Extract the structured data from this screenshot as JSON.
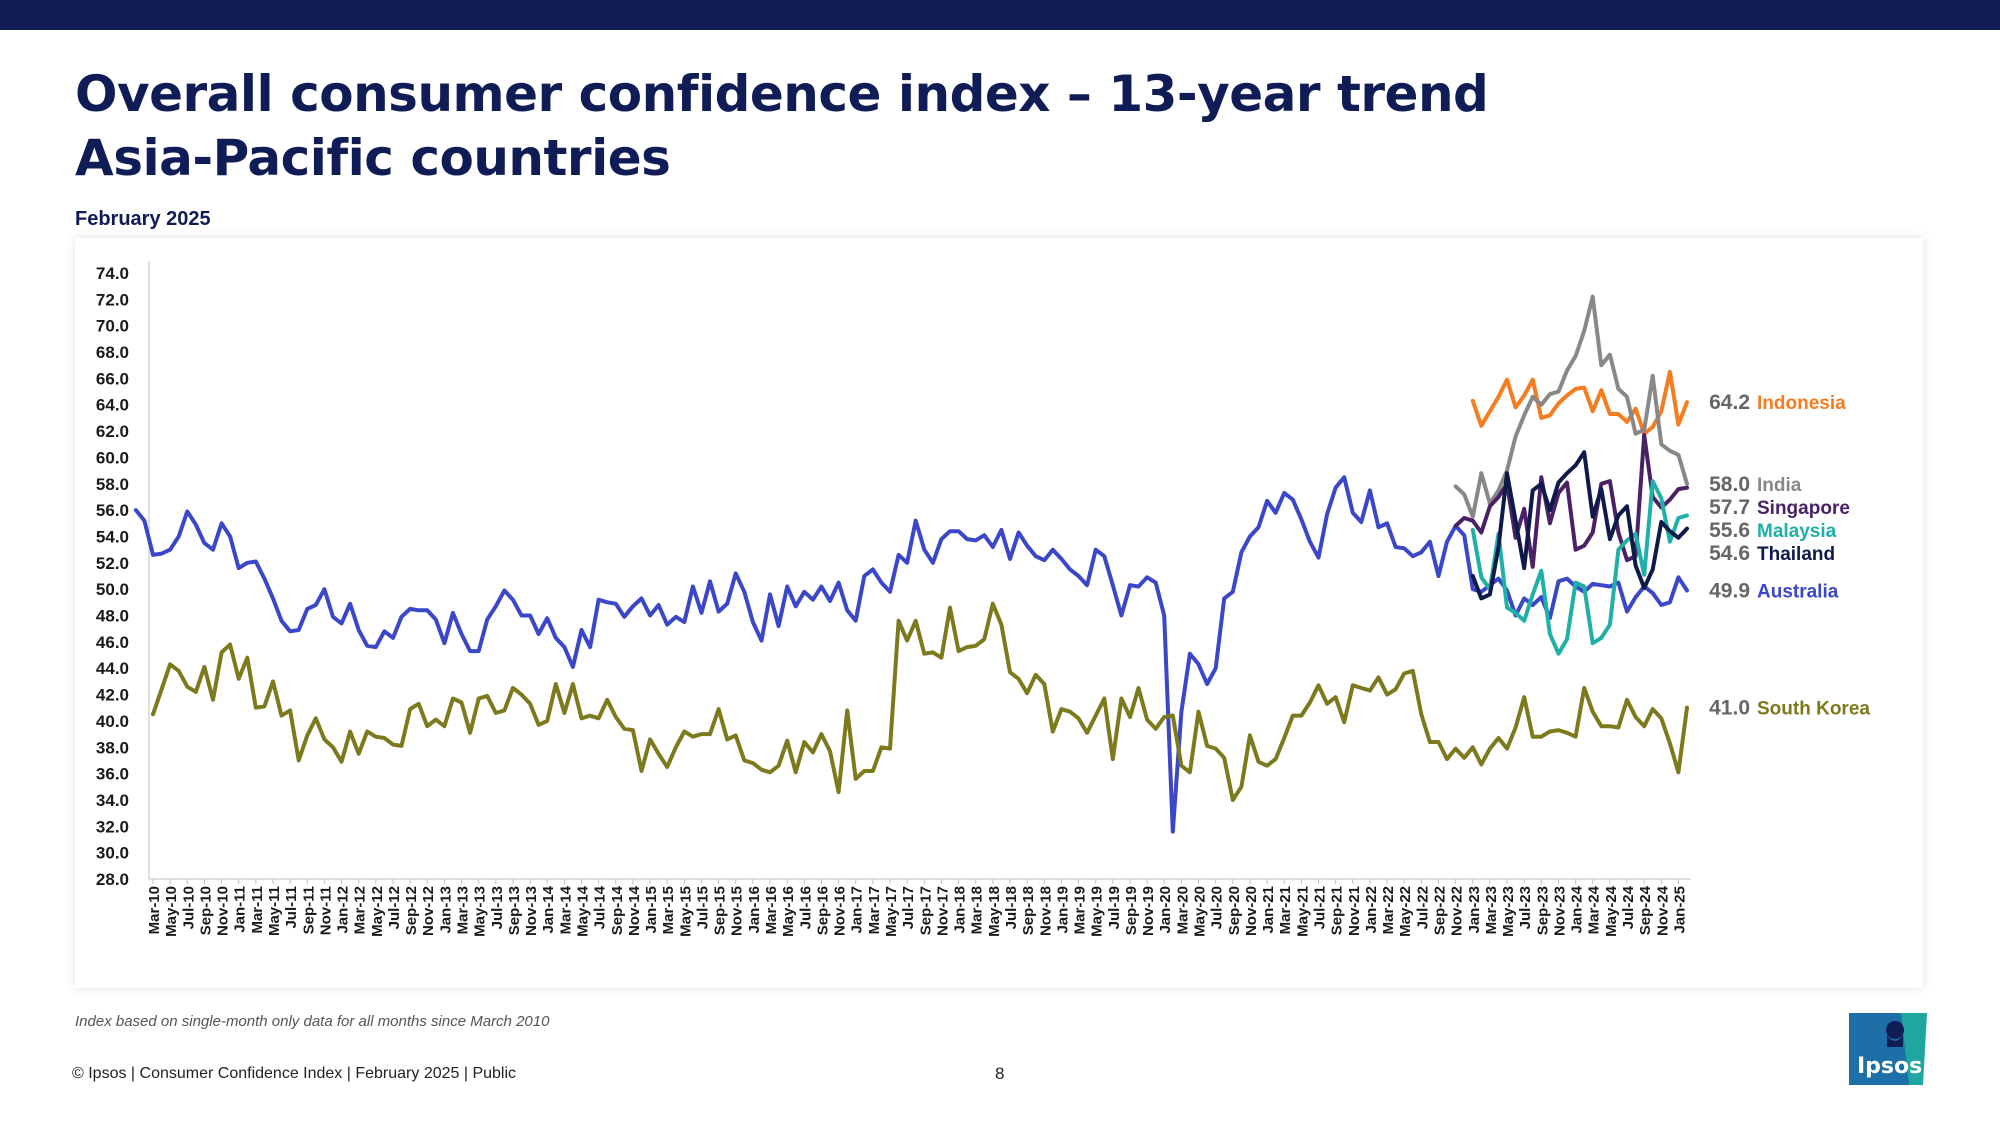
{
  "header": {
    "title_line1": "Overall consumer confidence index – 13-year trend",
    "title_line2": "Asia-Pacific countries",
    "subtitle": "February 2025"
  },
  "footnote": "Index based on single-month only data for all months since March 2010",
  "footer": {
    "copyright": "© Ipsos | Consumer Confidence Index | February 2025 | Public",
    "page": "8",
    "logo_text": "Ipsos"
  },
  "colors": {
    "navy": "#101c55",
    "Australia": "#3b47c8",
    "South Korea": "#7d7a1e",
    "Indonesia": "#f57c20",
    "India": "#888888",
    "Singapore": "#4a2166",
    "Malaysia": "#1fb0a8",
    "Thailand": "#0e1a4a",
    "logo": "#1d6fa8"
  },
  "chart_data": {
    "type": "line",
    "title": "",
    "xlabel": "",
    "ylabel": "",
    "ylim": [
      28,
      74
    ],
    "yticks": [
      "74.0",
      "72.0",
      "70.0",
      "68.0",
      "66.0",
      "64.0",
      "62.0",
      "60.0",
      "58.0",
      "56.0",
      "54.0",
      "52.0",
      "50.0",
      "48.0",
      "46.0",
      "44.0",
      "42.0",
      "40.0",
      "38.0",
      "36.0",
      "34.0",
      "32.0",
      "30.0",
      "28.0"
    ],
    "start_month": "Mar-10",
    "end_month": "Feb-25",
    "x_tick_labels": [
      "Mar-10",
      "May-10",
      "Jul-10",
      "Sep-10",
      "Nov-10",
      "Jan-11",
      "Mar-11",
      "May-11",
      "Jul-11",
      "Sep-11",
      "Nov-11",
      "Jan-12",
      "Mar-12",
      "May-12",
      "Jul-12",
      "Sep-12",
      "Nov-12",
      "Jan-13",
      "Mar-13",
      "May-13",
      "Jul-13",
      "Sep-13",
      "Nov-13",
      "Jan-14",
      "Mar-14",
      "May-14",
      "Jul-14",
      "Sep-14",
      "Nov-14",
      "Jan-15",
      "Mar-15",
      "May-15",
      "Jul-15",
      "Sep-15",
      "Nov-15",
      "Jan-16",
      "Mar-16",
      "May-16",
      "Jul-16",
      "Sep-16",
      "Nov-16",
      "Jan-17",
      "Mar-17",
      "May-17",
      "Jul-17",
      "Sep-17",
      "Nov-17",
      "Jan-18",
      "Mar-18",
      "May-18",
      "Jul-18",
      "Sep-18",
      "Nov-18",
      "Jan-19",
      "Mar-19",
      "May-19",
      "Jul-19",
      "Sep-19",
      "Nov-19",
      "Jan-20",
      "Mar-20",
      "May-20",
      "Jul-20",
      "Sep-20",
      "Nov-20",
      "Jan-21",
      "Mar-21",
      "May-21",
      "Jul-21",
      "Sep-21",
      "Nov-21",
      "Jan-22",
      "Mar-22",
      "May-22",
      "Jul-22",
      "Sep-22",
      "Nov-22",
      "Jan-23",
      "Mar-23",
      "May-23",
      "Jul-23",
      "Sep-23",
      "Nov-23",
      "Jan-24",
      "Mar-24",
      "May-24",
      "Jul-24",
      "Sep-24",
      "Nov-24",
      "Jan-25"
    ],
    "series": [
      {
        "name": "Australia",
        "last_label": "49.9",
        "values": [
          56.0,
          55.2,
          52.6,
          52.7,
          53.0,
          54.0,
          55.9,
          54.9,
          53.5,
          53.0,
          55.0,
          54.0,
          51.6,
          52.0,
          52.1,
          50.8,
          49.3,
          47.6,
          46.8,
          46.9,
          48.5,
          48.8,
          50.0,
          47.9,
          47.4,
          48.9,
          46.9,
          45.7,
          45.6,
          46.8,
          46.3,
          47.9,
          48.5,
          48.4,
          48.4,
          47.7,
          45.9,
          48.2,
          46.6,
          45.3,
          45.3,
          47.7,
          48.7,
          49.9,
          49.2,
          48.0,
          48.0,
          46.6,
          47.8,
          46.3,
          45.6,
          44.1,
          46.9,
          45.6,
          49.2,
          49.0,
          48.9,
          47.9,
          48.7,
          49.3,
          48.0,
          48.8,
          47.3,
          47.9,
          47.5,
          50.2,
          48.2,
          50.6,
          48.3,
          48.9,
          51.2,
          49.8,
          47.5,
          46.1,
          49.6,
          47.2,
          50.2,
          48.7,
          49.8,
          49.2,
          50.2,
          49.1,
          50.5,
          48.4,
          47.6,
          51.0,
          51.5,
          50.5,
          49.8,
          52.6,
          52.0,
          55.2,
          53.0,
          52.0,
          53.8,
          54.4,
          54.4,
          53.8,
          53.7,
          54.1,
          53.2,
          54.5,
          52.3,
          54.3,
          53.3,
          52.5,
          52.2,
          53.0,
          52.3,
          51.5,
          51.0,
          50.3,
          53.0,
          52.5,
          50.3,
          48.0,
          50.3,
          50.2,
          50.9,
          50.5,
          48.0,
          31.6,
          40.7,
          45.1,
          44.3,
          42.8,
          44.0,
          49.3,
          49.8,
          52.8,
          54.0,
          54.7,
          56.7,
          55.8,
          57.3,
          56.8,
          55.3,
          53.6,
          52.4,
          55.7,
          57.7,
          58.5,
          55.8,
          55.1,
          57.5,
          54.7,
          55.0,
          53.2,
          53.1,
          52.5,
          52.8,
          53.6,
          51.0,
          53.6,
          54.8,
          54.1,
          50.0,
          49.8,
          50.3,
          50.8,
          49.9,
          48.0,
          49.3,
          48.8,
          49.4,
          47.8,
          50.6,
          50.8,
          50.2,
          49.8,
          50.4,
          50.3,
          50.2,
          50.5,
          48.3,
          49.4,
          50.2,
          49.7,
          48.8,
          49.0,
          50.9,
          49.9
        ]
      },
      {
        "name": "South Korea",
        "last_label": "41.0",
        "values": [
          40.5,
          42.4,
          44.3,
          43.8,
          42.6,
          42.2,
          44.1,
          41.6,
          45.2,
          45.8,
          43.2,
          44.8,
          41.0,
          41.1,
          43.0,
          40.4,
          40.8,
          37.0,
          38.9,
          40.2,
          38.6,
          38.0,
          36.9,
          39.2,
          37.5,
          39.2,
          38.8,
          38.7,
          38.2,
          38.1,
          40.9,
          41.3,
          39.6,
          40.1,
          39.6,
          41.7,
          41.4,
          39.1,
          41.7,
          41.9,
          40.6,
          40.8,
          42.5,
          42.0,
          41.3,
          39.7,
          40.0,
          42.8,
          40.6,
          42.8,
          40.2,
          40.4,
          40.2,
          41.6,
          40.3,
          39.4,
          39.3,
          36.2,
          38.6,
          37.5,
          36.5,
          38.0,
          39.2,
          38.8,
          39.0,
          39.0,
          40.9,
          38.6,
          38.9,
          37.0,
          36.8,
          36.3,
          36.1,
          36.6,
          38.5,
          36.1,
          38.4,
          37.6,
          39.0,
          37.7,
          34.6,
          40.8,
          35.6,
          36.2,
          36.2,
          38.0,
          37.9,
          47.6,
          46.1,
          47.6,
          45.1,
          45.2,
          44.8,
          48.6,
          45.3,
          45.6,
          45.7,
          46.2,
          48.9,
          47.3,
          43.7,
          43.2,
          42.1,
          43.5,
          42.8,
          39.2,
          40.9,
          40.7,
          40.2,
          39.1,
          40.4,
          41.7,
          37.1,
          41.7,
          40.3,
          42.5,
          40.1,
          39.4,
          40.3,
          40.4,
          36.6,
          36.1,
          40.7,
          38.1,
          37.9,
          37.2,
          34.0,
          35.0,
          38.9,
          36.9,
          36.6,
          37.1,
          38.7,
          40.4,
          40.4,
          41.4,
          42.7,
          41.3,
          41.8,
          39.9,
          42.7,
          42.5,
          42.3,
          43.3,
          42.0,
          42.4,
          43.6,
          43.8,
          40.5,
          38.4,
          38.4,
          37.1,
          37.9,
          37.2,
          38.0,
          36.7,
          37.9,
          38.7,
          37.9,
          39.5,
          41.8,
          38.8,
          38.8,
          39.2,
          39.3,
          39.1,
          38.8,
          42.5,
          40.7,
          39.6,
          39.6,
          39.5,
          41.6,
          40.3,
          39.6,
          40.9,
          40.2,
          38.3,
          36.1,
          41.0
        ]
      },
      {
        "name": "Indonesia",
        "last_label": "64.2",
        "values": [
          64.3,
          62.4,
          63.5,
          64.6,
          65.9,
          63.8,
          64.7,
          65.9,
          63.0,
          63.2,
          64.1,
          64.7,
          65.2,
          65.3,
          63.5,
          65.1,
          63.3,
          63.3,
          62.7,
          63.7,
          61.8,
          62.3,
          63.5,
          66.5,
          62.5,
          64.2
        ]
      },
      {
        "name": "India",
        "last_label": "58.0",
        "values": [
          57.8,
          57.2,
          55.5,
          58.8,
          56.5,
          57.5,
          59.0,
          61.6,
          63.2,
          64.6,
          64.0,
          64.8,
          65.0,
          66.6,
          67.7,
          69.6,
          72.2,
          67.0,
          67.8,
          65.2,
          64.6,
          61.8,
          62.1,
          66.2,
          61.0,
          60.5,
          60.2,
          58.0
        ]
      },
      {
        "name": "Singapore",
        "last_label": "57.7",
        "values": [
          54.8,
          55.4,
          55.2,
          54.3,
          56.3,
          57.0,
          58.0,
          53.9,
          56.1,
          51.7,
          58.5,
          55.0,
          57.3,
          58.1,
          53.0,
          53.3,
          54.3,
          58.0,
          58.2,
          54.3,
          52.2,
          52.5,
          61.7,
          57.0,
          56.2,
          56.8,
          57.6,
          57.7
        ]
      },
      {
        "name": "Malaysia",
        "last_label": "55.6",
        "values": [
          54.5,
          50.9,
          50.0,
          54.2,
          48.6,
          48.2,
          47.6,
          49.6,
          51.4,
          46.6,
          45.1,
          46.2,
          50.5,
          50.2,
          45.9,
          46.3,
          47.3,
          53.0,
          53.7,
          54.2,
          51.1,
          58.2,
          56.9,
          53.6,
          55.4,
          55.6
        ]
      },
      {
        "name": "Thailand",
        "last_label": "54.6",
        "values": [
          51.0,
          49.3,
          49.6,
          53.2,
          58.8,
          55.2,
          51.6,
          57.5,
          58.0,
          56.0,
          58.1,
          58.8,
          59.4,
          60.4,
          55.5,
          57.6,
          53.8,
          55.6,
          56.3,
          51.8,
          50.1,
          51.5,
          55.1,
          54.4,
          53.9,
          54.6
        ]
      }
    ],
    "legend_labels": [
      {
        "value": "64.2",
        "name": "Indonesia"
      },
      {
        "value": "58.0",
        "name": "India"
      },
      {
        "value": "57.7",
        "name": "Singapore"
      },
      {
        "value": "55.6",
        "name": "Malaysia"
      },
      {
        "value": "54.6",
        "name": "Thailand"
      },
      {
        "value": "49.9",
        "name": "Australia"
      },
      {
        "value": "41.0",
        "name": "South Korea"
      }
    ],
    "legend_placement": "right, at line ends",
    "grid": false
  }
}
